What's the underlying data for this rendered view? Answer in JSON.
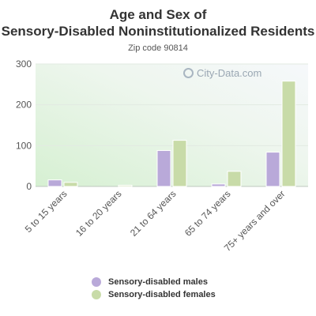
{
  "chart_data": {
    "type": "bar",
    "title": "Age and Sex of Sensory-Disabled Noninstitutionalized Residents",
    "subtitle": "Zip code 90814",
    "categories": [
      "5 to 15 years",
      "16 to 20 years",
      "21 to 64 years",
      "65 to 74 years",
      "75+ years and over"
    ],
    "series": [
      {
        "name": "Sensory-disabled males",
        "values": [
          16,
          0,
          88,
          6,
          84
        ],
        "color": "#b9a9d9"
      },
      {
        "name": "Sensory-disabled females",
        "values": [
          10,
          3,
          113,
          37,
          258
        ],
        "color": "#c8dba8"
      }
    ],
    "ylim": [
      0,
      300
    ],
    "yticks": [
      0,
      100,
      200,
      300
    ],
    "grid": true,
    "legend": "bottom"
  },
  "watermark": "City-Data.com"
}
